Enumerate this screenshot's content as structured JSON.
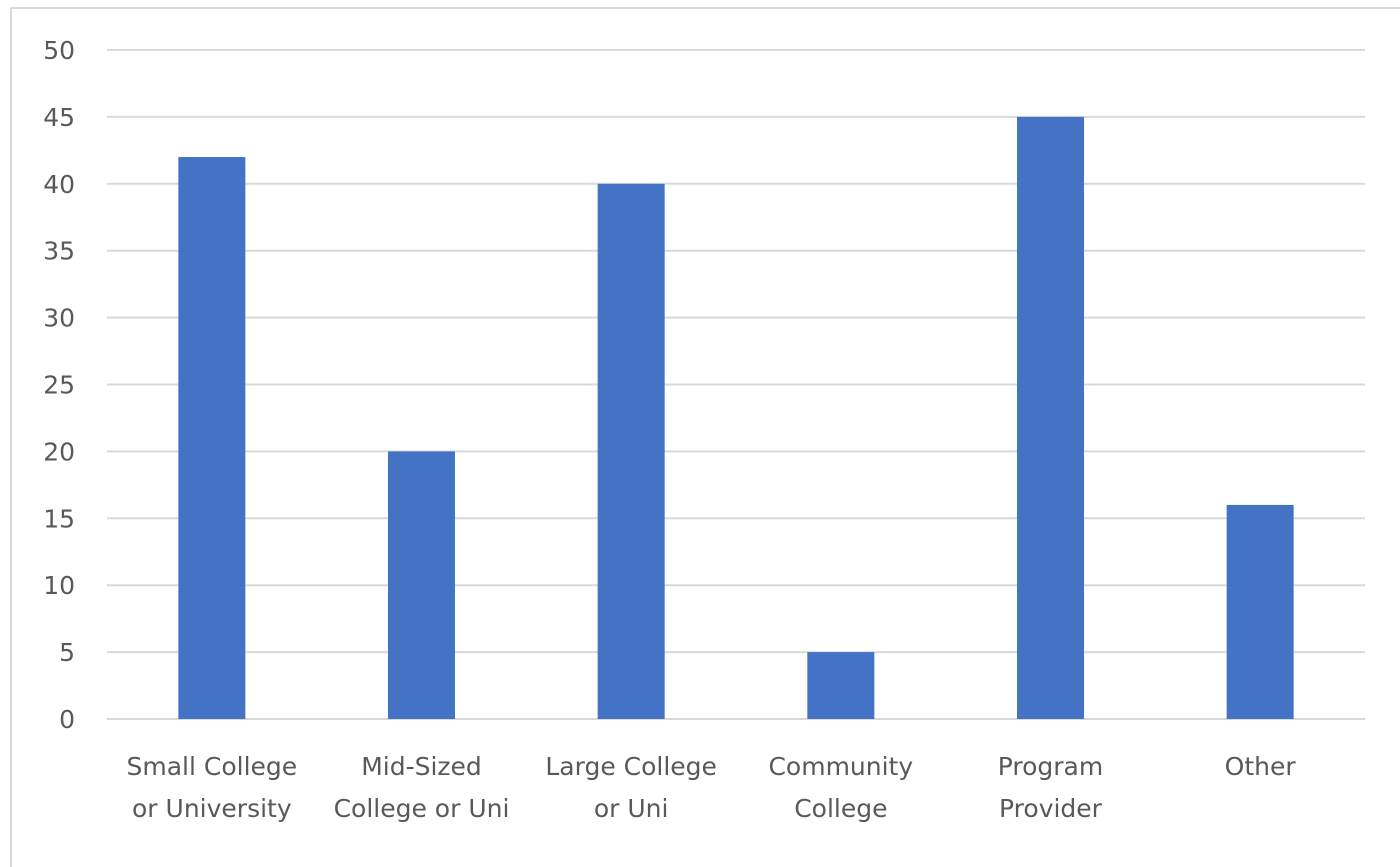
{
  "chart_data": {
    "type": "bar",
    "title": "",
    "xlabel": "",
    "ylabel": "",
    "categories": [
      [
        "Small College",
        "or University"
      ],
      [
        "Mid-Sized",
        "College or Uni"
      ],
      [
        "Large College",
        "or Uni"
      ],
      [
        "Community",
        "College"
      ],
      [
        "Program",
        "Provider"
      ],
      [
        "Other"
      ]
    ],
    "values": [
      42,
      20,
      40,
      5,
      45,
      16
    ],
    "ylim": [
      0,
      50
    ],
    "yticks": [
      0,
      5,
      10,
      15,
      20,
      25,
      30,
      35,
      40,
      45,
      50
    ],
    "grid": true,
    "legend": "none",
    "colors": {
      "bar": "#4472c4",
      "grid": "#d9d9d9",
      "axis": "#d9d9d9",
      "text": "#595959"
    }
  }
}
